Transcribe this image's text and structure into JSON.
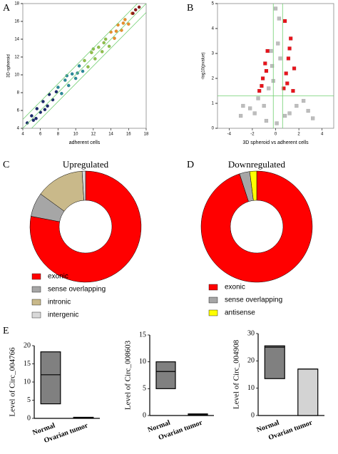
{
  "chart_data": [
    {
      "type": "scatter",
      "label": "A",
      "x_label": "adherent cells",
      "y_label": "3D-spheroid",
      "xlim": [
        4,
        18
      ],
      "ylim": [
        4,
        18
      ],
      "xticks": [
        4,
        6,
        8,
        10,
        12,
        14,
        16,
        18
      ],
      "yticks": [
        4,
        6,
        8,
        10,
        12,
        14,
        16,
        18
      ],
      "marker": "circle",
      "guide_color": "#6fcf6f",
      "guide_offsets": [
        -1,
        0,
        1
      ],
      "series": [
        {
          "color": "#1a2a6c",
          "x": [
            4.5,
            5,
            5.2,
            5.6,
            6,
            6.3,
            6.8,
            7,
            7.4,
            7.8,
            5.5,
            6.5
          ],
          "y": [
            4.6,
            5.4,
            4.9,
            6.2,
            5.8,
            7,
            6.5,
            7.8,
            7.2,
            8.1,
            5.1,
            6.1
          ]
        },
        {
          "color": "#2a8a9a",
          "x": [
            8,
            8.4,
            8.8,
            9.2,
            9.6,
            10,
            10.4,
            10.8,
            9,
            10.2
          ],
          "y": [
            8.6,
            7.9,
            9.4,
            8.8,
            10.1,
            9.6,
            11,
            10.4,
            9.9,
            10.2
          ]
        },
        {
          "color": "#8fc04a",
          "x": [
            11,
            11.4,
            11.8,
            12.2,
            12.6,
            13,
            13.4,
            13.8,
            12,
            13.2
          ],
          "y": [
            11.6,
            10.9,
            12.5,
            11.8,
            13.1,
            12.6,
            14,
            13.2,
            12.9,
            13.6
          ]
        },
        {
          "color": "#e8902a",
          "x": [
            14,
            14.4,
            14.8,
            15.2,
            15.6,
            16,
            16.4,
            14.6,
            15.4
          ],
          "y": [
            14.8,
            14.1,
            15.6,
            15,
            16.2,
            15.7,
            16.9,
            14.9,
            15.8
          ]
        },
        {
          "color": "#8b1a1a",
          "x": [
            16.8,
            17.2,
            16.5
          ],
          "y": [
            17.3,
            17.6,
            16.9
          ]
        }
      ]
    },
    {
      "type": "scatter",
      "label": "B",
      "x_label": "3D spheroid vs adherent cells",
      "y_label": "-log10(pvalue)",
      "xlim": [
        -5,
        5
      ],
      "ylim": [
        0,
        5
      ],
      "xticks": [
        -4,
        -2,
        0,
        2,
        4
      ],
      "yticks": [
        0,
        1,
        2,
        3,
        4,
        5
      ],
      "marker": "square",
      "guide_color": "#6fcf6f",
      "vlines": [
        -0.2,
        0.6
      ],
      "hlines": [
        1.3
      ],
      "series": [
        {
          "color": "#bdbdbd",
          "x": [
            -3,
            -2.2,
            -1.5,
            -1,
            -0.6,
            -0.3,
            0,
            0.2,
            0.4,
            -0.8,
            1.2,
            1.8,
            2.4,
            3.2,
            -1.8,
            0.8,
            -0.2,
            0.1,
            -2.8,
            2.8,
            0.3,
            -0.4
          ],
          "y": [
            0.5,
            0.8,
            1.2,
            0.9,
            1.6,
            2.5,
            4.8,
            3.4,
            2.8,
            0.3,
            0.6,
            0.9,
            1.1,
            0.4,
            0.6,
            0.5,
            1.9,
            0.2,
            0.9,
            0.7,
            4.4,
            3.1
          ]
        },
        {
          "color": "#e8141c",
          "x": [
            -1.4,
            -1.1,
            -0.9,
            -0.7,
            -1.2,
            0.7,
            0.9,
            1.1,
            1.3,
            1.6,
            0.8,
            1.0,
            1.5,
            -0.8,
            1.2
          ],
          "y": [
            1.5,
            2.0,
            2.6,
            3.1,
            1.7,
            1.6,
            2.2,
            2.8,
            3.6,
            2.4,
            4.3,
            1.8,
            1.5,
            2.3,
            3.2
          ]
        }
      ]
    },
    {
      "type": "donut",
      "label": "C",
      "title": "Upregulated",
      "categories": [
        "exonic",
        "sense overlapping",
        "intronic",
        "intergenic"
      ],
      "values": [
        78,
        7,
        14,
        1
      ],
      "colors": [
        "#ff0000",
        "#a6a6a6",
        "#c9b98a",
        "#d9d9d9"
      ]
    },
    {
      "type": "donut",
      "label": "D",
      "title": "Downregulated",
      "categories": [
        "exonic",
        "sense overlapping",
        "antisense"
      ],
      "values": [
        95,
        3,
        2
      ],
      "colors": [
        "#ff0000",
        "#a6a6a6",
        "#ffff00"
      ]
    },
    {
      "type": "floating-bar",
      "label": "E",
      "y_label": "Level of Circ_004766",
      "categories": [
        "Normal",
        "Ovarian tumor"
      ],
      "low": [
        4,
        0.1
      ],
      "median": [
        12,
        0.2
      ],
      "high": [
        18.3,
        0.3
      ],
      "colors": [
        "#808080",
        "#d3d3d3"
      ],
      "ylim": [
        0,
        20
      ],
      "yticks": [
        0,
        5,
        10,
        15,
        20
      ]
    },
    {
      "type": "floating-bar",
      "y_label": "Level of Circ_008603",
      "categories": [
        "Normal",
        "Ovarian tumor"
      ],
      "low": [
        5,
        0.1
      ],
      "median": [
        8.2,
        0.2
      ],
      "high": [
        10,
        0.3
      ],
      "colors": [
        "#808080",
        "#d3d3d3"
      ],
      "ylim": [
        0,
        15
      ],
      "yticks": [
        0,
        5,
        10,
        15
      ]
    },
    {
      "type": "floating-bar",
      "y_label": "Level of Circ_004908",
      "categories": [
        "Normal",
        "Ovarian tumor"
      ],
      "low": [
        13.5,
        0
      ],
      "median": [
        25,
        17
      ],
      "high": [
        25.5,
        17
      ],
      "colors": [
        "#808080",
        "#d3d3d3"
      ],
      "ylim": [
        0,
        30
      ],
      "yticks": [
        0,
        10,
        20,
        30
      ]
    }
  ]
}
